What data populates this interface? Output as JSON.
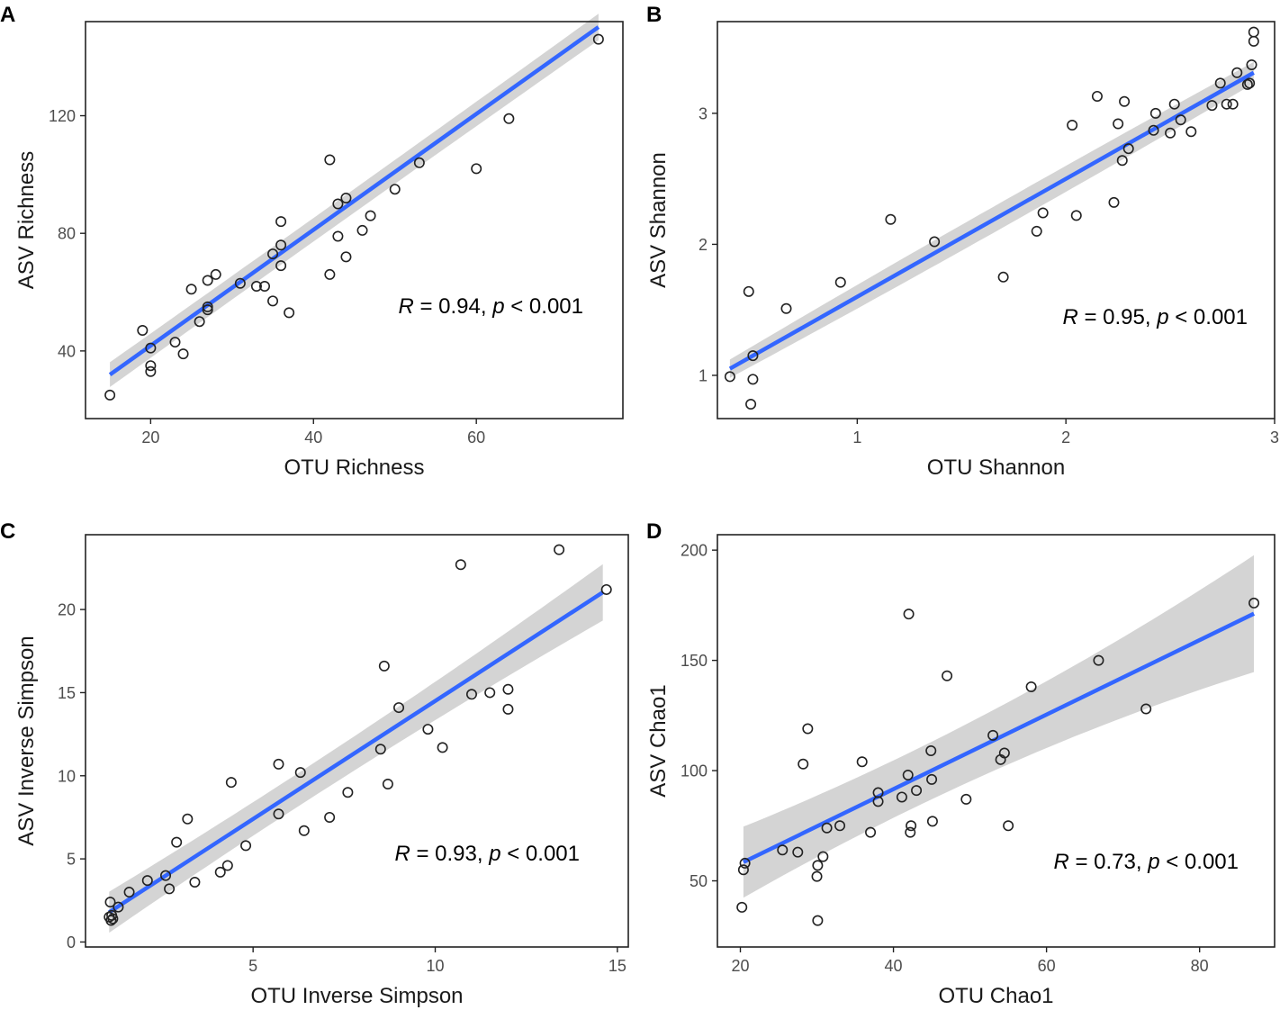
{
  "chart_data": [
    {
      "panel": "A",
      "type": "scatter",
      "xlabel": "OTU Richness",
      "ylabel": "ASV Richness",
      "xlim": [
        12.0,
        78.0
      ],
      "ylim": [
        17.0,
        152.0
      ],
      "xticks": [
        20,
        40,
        60
      ],
      "yticks": [
        40,
        80,
        120
      ],
      "stat": {
        "r_label": "R",
        "r_value": "= 0.94,",
        "p_label": "p",
        "p_value": "< 0.001"
      },
      "fit": {
        "intercept": 2.4,
        "slope": 1.97,
        "x_from": 15,
        "x_to": 75,
        "ci_low_half": 4.0,
        "ci_high_half": 4.5,
        "ci_center": 38.8
      },
      "points": [
        {
          "x": 15,
          "y": 25
        },
        {
          "x": 19,
          "y": 47
        },
        {
          "x": 20,
          "y": 41
        },
        {
          "x": 20,
          "y": 35
        },
        {
          "x": 20,
          "y": 33
        },
        {
          "x": 23,
          "y": 43
        },
        {
          "x": 24,
          "y": 39
        },
        {
          "x": 25,
          "y": 61
        },
        {
          "x": 26,
          "y": 50
        },
        {
          "x": 27,
          "y": 64
        },
        {
          "x": 27,
          "y": 54
        },
        {
          "x": 27,
          "y": 55
        },
        {
          "x": 28,
          "y": 66
        },
        {
          "x": 31,
          "y": 63
        },
        {
          "x": 33,
          "y": 62
        },
        {
          "x": 34,
          "y": 62
        },
        {
          "x": 35,
          "y": 73
        },
        {
          "x": 35,
          "y": 57
        },
        {
          "x": 36,
          "y": 84
        },
        {
          "x": 36,
          "y": 76
        },
        {
          "x": 36,
          "y": 69
        },
        {
          "x": 37,
          "y": 53
        },
        {
          "x": 42,
          "y": 105
        },
        {
          "x": 42,
          "y": 66
        },
        {
          "x": 43,
          "y": 90
        },
        {
          "x": 43,
          "y": 79
        },
        {
          "x": 44,
          "y": 92
        },
        {
          "x": 44,
          "y": 72
        },
        {
          "x": 46,
          "y": 81
        },
        {
          "x": 47,
          "y": 86
        },
        {
          "x": 50,
          "y": 95
        },
        {
          "x": 53,
          "y": 104
        },
        {
          "x": 60,
          "y": 102
        },
        {
          "x": 64,
          "y": 119
        },
        {
          "x": 75,
          "y": 146
        }
      ]
    },
    {
      "panel": "B",
      "type": "scatter",
      "xlabel": "OTU Shannon",
      "ylabel": "ASV Shannon",
      "xlim": [
        0.33,
        3.0
      ],
      "ylim": [
        0.67,
        3.7
      ],
      "xticks": [
        1,
        2,
        3
      ],
      "yticks": [
        1,
        2,
        3
      ],
      "stat": {
        "r_label": "R",
        "r_value": "= 0.95,",
        "p_label": "p",
        "p_value": "< 0.001"
      },
      "fit": {
        "intercept": 0.7,
        "slope": 0.9,
        "x_from": 0.39,
        "x_to": 2.9,
        "ci_low_half": 0.1,
        "ci_high_half": 0.07,
        "ci_center": 1.8
      },
      "points": [
        {
          "x": 0.39,
          "y": 0.99
        },
        {
          "x": 0.48,
          "y": 1.64
        },
        {
          "x": 0.49,
          "y": 0.78
        },
        {
          "x": 0.5,
          "y": 1.15
        },
        {
          "x": 0.5,
          "y": 0.97
        },
        {
          "x": 0.66,
          "y": 1.51
        },
        {
          "x": 0.92,
          "y": 1.71
        },
        {
          "x": 1.16,
          "y": 2.19
        },
        {
          "x": 1.37,
          "y": 2.02
        },
        {
          "x": 1.7,
          "y": 1.75
        },
        {
          "x": 1.86,
          "y": 2.1
        },
        {
          "x": 1.89,
          "y": 2.24
        },
        {
          "x": 2.03,
          "y": 2.91
        },
        {
          "x": 2.05,
          "y": 2.22
        },
        {
          "x": 2.15,
          "y": 3.13
        },
        {
          "x": 2.23,
          "y": 2.32
        },
        {
          "x": 2.25,
          "y": 2.92
        },
        {
          "x": 2.27,
          "y": 2.64
        },
        {
          "x": 2.28,
          "y": 3.09
        },
        {
          "x": 2.3,
          "y": 2.73
        },
        {
          "x": 2.42,
          "y": 2.87
        },
        {
          "x": 2.43,
          "y": 3.0
        },
        {
          "x": 2.5,
          "y": 2.85
        },
        {
          "x": 2.52,
          "y": 3.07
        },
        {
          "x": 2.55,
          "y": 2.95
        },
        {
          "x": 2.6,
          "y": 2.86
        },
        {
          "x": 2.7,
          "y": 3.06
        },
        {
          "x": 2.74,
          "y": 3.23
        },
        {
          "x": 2.77,
          "y": 3.07
        },
        {
          "x": 2.8,
          "y": 3.07
        },
        {
          "x": 2.82,
          "y": 3.31
        },
        {
          "x": 2.87,
          "y": 3.22
        },
        {
          "x": 2.88,
          "y": 3.23
        },
        {
          "x": 2.89,
          "y": 3.37
        },
        {
          "x": 2.9,
          "y": 3.55
        },
        {
          "x": 2.9,
          "y": 3.62
        }
      ]
    },
    {
      "panel": "C",
      "type": "scatter",
      "xlabel": "OTU Inverse Simpson",
      "ylabel": "ASV Inverse Simpson",
      "xlim": [
        0.4,
        15.3
      ],
      "ylim": [
        -0.3,
        24.5
      ],
      "xticks": [
        5,
        10,
        15
      ],
      "yticks": [
        0,
        5,
        10,
        15,
        20
      ],
      "stat": {
        "r_label": "R",
        "r_value": "= 0.93,",
        "p_label": "p",
        "p_value": "< 0.001"
      },
      "fit": {
        "intercept": 0.3,
        "slope": 1.42,
        "x_from": 1.05,
        "x_to": 14.6,
        "ci_low_half": 1.0,
        "ci_high_half": 1.7,
        "ci_center": 6.0
      },
      "points": [
        {
          "x": 1.05,
          "y": 1.5
        },
        {
          "x": 1.08,
          "y": 2.4
        },
        {
          "x": 1.1,
          "y": 1.3
        },
        {
          "x": 1.12,
          "y": 1.6
        },
        {
          "x": 1.15,
          "y": 1.4
        },
        {
          "x": 1.3,
          "y": 2.1
        },
        {
          "x": 1.6,
          "y": 3.0
        },
        {
          "x": 2.1,
          "y": 3.7
        },
        {
          "x": 2.6,
          "y": 4.0
        },
        {
          "x": 2.7,
          "y": 3.2
        },
        {
          "x": 2.9,
          "y": 6.0
        },
        {
          "x": 3.2,
          "y": 7.4
        },
        {
          "x": 3.4,
          "y": 3.6
        },
        {
          "x": 4.1,
          "y": 4.2
        },
        {
          "x": 4.3,
          "y": 4.6
        },
        {
          "x": 4.4,
          "y": 9.6
        },
        {
          "x": 4.8,
          "y": 5.8
        },
        {
          "x": 5.7,
          "y": 7.7
        },
        {
          "x": 5.7,
          "y": 10.7
        },
        {
          "x": 6.3,
          "y": 10.2
        },
        {
          "x": 6.4,
          "y": 6.7
        },
        {
          "x": 7.1,
          "y": 7.5
        },
        {
          "x": 7.6,
          "y": 9.0
        },
        {
          "x": 8.5,
          "y": 11.6
        },
        {
          "x": 8.6,
          "y": 16.6
        },
        {
          "x": 8.7,
          "y": 9.5
        },
        {
          "x": 9.0,
          "y": 14.1
        },
        {
          "x": 9.8,
          "y": 12.8
        },
        {
          "x": 10.2,
          "y": 11.7
        },
        {
          "x": 10.7,
          "y": 22.7
        },
        {
          "x": 11.0,
          "y": 14.9
        },
        {
          "x": 11.5,
          "y": 15.0
        },
        {
          "x": 12.0,
          "y": 15.2
        },
        {
          "x": 12.0,
          "y": 14.0
        },
        {
          "x": 13.4,
          "y": 23.6
        },
        {
          "x": 14.7,
          "y": 21.2
        }
      ]
    },
    {
      "panel": "D",
      "type": "scatter",
      "xlabel": "OTU Chao1",
      "ylabel": "ASV Chao1",
      "xlim": [
        17.0,
        89.8
      ],
      "ylim": [
        20.0,
        207.0
      ],
      "xticks": [
        20,
        40,
        60,
        80
      ],
      "yticks": [
        50,
        100,
        150,
        200
      ],
      "stat": {
        "r_label": "R",
        "r_value": "= 0.73,",
        "p_label": "p",
        "p_value": "< 0.001"
      },
      "fit": {
        "intercept": 24.0,
        "slope": 1.69,
        "x_from": 20.4,
        "x_to": 87.1,
        "ci_low_half": 13.0,
        "ci_high_half": 26.5,
        "ci_center": 42.0
      },
      "points": [
        {
          "x": 20.2,
          "y": 38
        },
        {
          "x": 20.4,
          "y": 55
        },
        {
          "x": 20.6,
          "y": 58
        },
        {
          "x": 25.5,
          "y": 64
        },
        {
          "x": 27.5,
          "y": 63
        },
        {
          "x": 28.2,
          "y": 103
        },
        {
          "x": 28.8,
          "y": 119
        },
        {
          "x": 30.0,
          "y": 52
        },
        {
          "x": 30.1,
          "y": 57
        },
        {
          "x": 30.1,
          "y": 32
        },
        {
          "x": 30.8,
          "y": 61
        },
        {
          "x": 31.3,
          "y": 74
        },
        {
          "x": 33.0,
          "y": 75
        },
        {
          "x": 35.9,
          "y": 104
        },
        {
          "x": 37.0,
          "y": 72
        },
        {
          "x": 38.0,
          "y": 86
        },
        {
          "x": 38.0,
          "y": 90
        },
        {
          "x": 41.1,
          "y": 88
        },
        {
          "x": 41.9,
          "y": 98
        },
        {
          "x": 42.0,
          "y": 171
        },
        {
          "x": 42.2,
          "y": 72
        },
        {
          "x": 42.3,
          "y": 75
        },
        {
          "x": 43.0,
          "y": 91
        },
        {
          "x": 44.9,
          "y": 109
        },
        {
          "x": 45.0,
          "y": 96
        },
        {
          "x": 45.1,
          "y": 77
        },
        {
          "x": 47.0,
          "y": 143
        },
        {
          "x": 49.5,
          "y": 87
        },
        {
          "x": 53.0,
          "y": 116
        },
        {
          "x": 54.0,
          "y": 105
        },
        {
          "x": 54.5,
          "y": 108
        },
        {
          "x": 55.0,
          "y": 75
        },
        {
          "x": 58.0,
          "y": 138
        },
        {
          "x": 66.8,
          "y": 150
        },
        {
          "x": 73.0,
          "y": 128
        },
        {
          "x": 87.1,
          "y": 176
        }
      ]
    }
  ],
  "colors": {
    "line": "#3366ff",
    "band": "#d4d4d4",
    "point_stroke": "#222222",
    "axis": "#222222",
    "tick_text": "#4d4d4d"
  }
}
